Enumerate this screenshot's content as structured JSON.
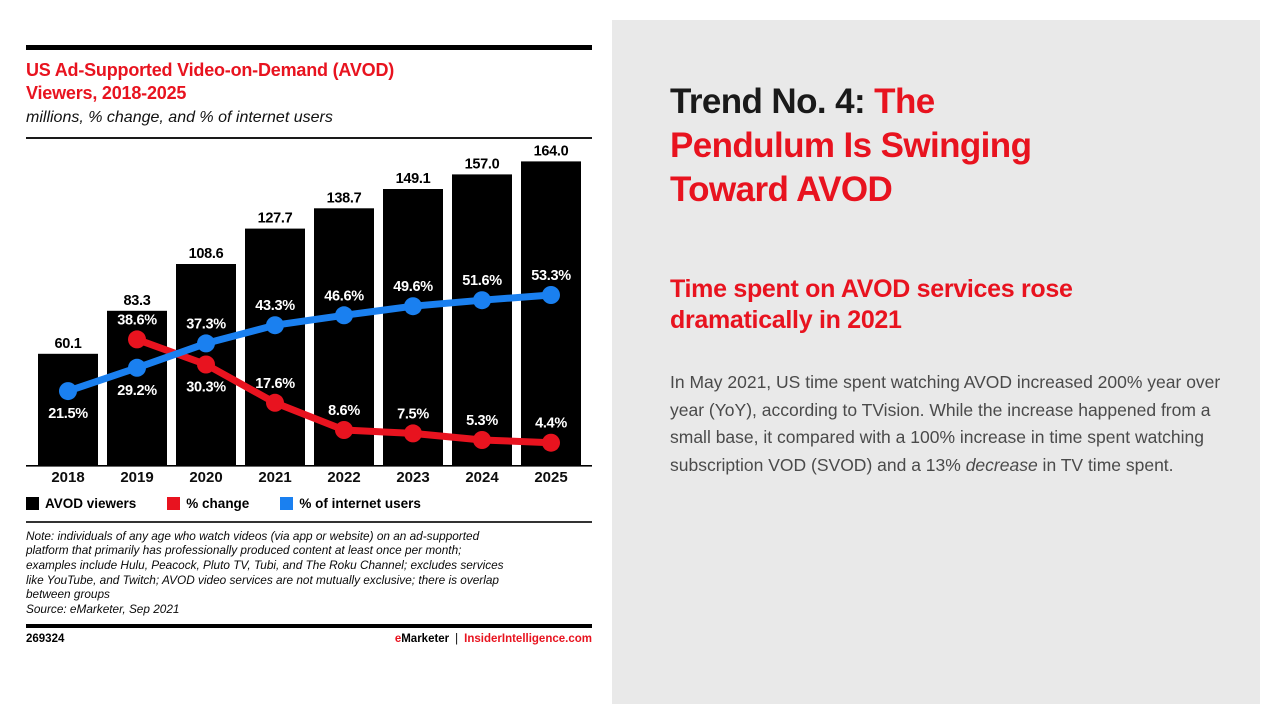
{
  "colors": {
    "red": "#e8131f",
    "blue": "#1a80f0",
    "black": "#000000",
    "panel_gray": "#e9e9e9",
    "body_text": "#4a4a4a"
  },
  "left_panel": {
    "title": "US Ad-Supported Video-on-Demand (AVOD) Viewers, 2018-2025",
    "subtitle": "millions, % change, and % of internet users",
    "legend": [
      {
        "label": "AVOD viewers",
        "color": "#000000"
      },
      {
        "label": "% change",
        "color": "#e8131f"
      },
      {
        "label": "% of internet users",
        "color": "#1a80f0"
      }
    ],
    "note_lines": [
      "Note: individuals of any age who watch videos (via app or website) on an ad-supported",
      "platform that primarily has professionally produced content at least once per month;",
      "examples include Hulu, Peacock, Pluto TV, Tubi, and The Roku Channel; excludes services",
      "like YouTube, and Twitch; AVOD video services are not mutually exclusive; there is overlap",
      "between groups"
    ],
    "source": "Source: eMarketer, Sep 2021",
    "footer": {
      "chart_id": "269324",
      "brand_e": "e",
      "brand_rest": "Marketer",
      "separator": "|",
      "brand_site": "InsiderIntelligence.com"
    }
  },
  "chart_data": {
    "type": "bar",
    "subtype": "bar-with-two-lines",
    "title": "US Ad-Supported Video-on-Demand (AVOD) Viewers, 2018-2025",
    "xlabel": "",
    "ylabel": "millions, % change, and % of internet users",
    "grid": false,
    "legend_position": "bottom",
    "categories": [
      "2018",
      "2019",
      "2020",
      "2021",
      "2022",
      "2023",
      "2024",
      "2025"
    ],
    "series": [
      {
        "name": "AVOD viewers",
        "type": "bar",
        "unit": "millions",
        "color": "#000000",
        "values": [
          60.1,
          83.3,
          108.6,
          127.7,
          138.7,
          149.1,
          157.0,
          164.0
        ]
      },
      {
        "name": "% change",
        "type": "line",
        "unit": "%",
        "color": "#e8131f",
        "values": [
          null,
          38.6,
          30.3,
          17.6,
          8.6,
          7.5,
          5.3,
          4.4
        ],
        "label_positions": [
          null,
          "above",
          "below",
          "above",
          "above",
          "above",
          "above",
          "above"
        ]
      },
      {
        "name": "% of internet users",
        "type": "line",
        "unit": "%",
        "color": "#1a80f0",
        "values": [
          21.5,
          29.2,
          37.3,
          43.3,
          46.6,
          49.6,
          51.6,
          53.3
        ],
        "label_positions": [
          "below",
          "below",
          "above",
          "above",
          "above",
          "above",
          "above",
          "above"
        ]
      }
    ],
    "bar_axis_range": [
      0,
      170
    ],
    "pct_axis_range": [
      0,
      60
    ]
  },
  "right_panel": {
    "heading": {
      "line1_black": "Trend No. 4: ",
      "line1_red": "The",
      "line2": "Pendulum Is Swinging",
      "line3": "Toward AVOD"
    },
    "subheading": {
      "line1": "Time spent on AVOD services rose",
      "line2": "dramatically in 2021"
    },
    "body": {
      "before_italic": "In May 2021, US time spent watching AVOD increased 200% year over year (YoY), according to TVision. While the increase happened from a small base, it compared with a 100% increase in time spent watching subscription VOD (SVOD) and a 13% ",
      "italic": "decrease",
      "after_italic": " in TV time spent."
    }
  }
}
